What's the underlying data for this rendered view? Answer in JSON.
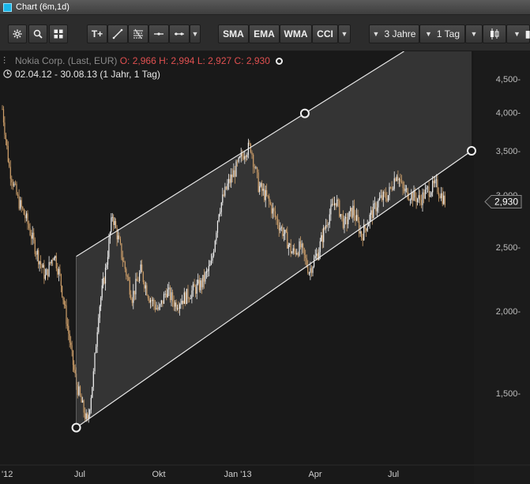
{
  "window": {
    "title": "Chart (6m,1d)"
  },
  "toolbar": {
    "indicators": [
      "SMA",
      "EMA",
      "WMA",
      "CCI"
    ],
    "period": "3 Jahre",
    "interval": "1 Tag",
    "text_tool_label": "T+"
  },
  "info": {
    "instrument": "Nokia Corp. (Last, EUR)",
    "open": "O: 2,966",
    "high": "H: 2,994",
    "low": "L: 2,927",
    "close": "C: 2,930",
    "range": "02.04.12 - 30.08.13 (1 Jahr, 1 Tag)"
  },
  "colors": {
    "up": "#f2f2f2",
    "down": "#cfa06a",
    "channel_fill": "#3a3a3a",
    "ohlc_text": "#e05050",
    "window_icon": "#19b6e8"
  },
  "chart_data": {
    "type": "line",
    "title": "Nokia Corp. (Last, EUR)",
    "scale": "log",
    "ylim": [
      1.3,
      4.9
    ],
    "x_tick_labels": [
      "'12",
      "Jul",
      "Okt",
      "Jan '13",
      "Apr",
      "Jul"
    ],
    "y_tick_labels": [
      "1,500-",
      "2,000-",
      "2,500-",
      "3,000-",
      "3,500-",
      "4,000-",
      "4,500-"
    ],
    "y_tick_values": [
      1.5,
      2.0,
      2.5,
      3.0,
      3.5,
      4.0,
      4.5
    ],
    "last_price_label": "2,930",
    "last_price": 2.93,
    "grid": false,
    "series": [
      {
        "type": "candlestick",
        "x": [
          "2012-04-02",
          "2012-04-10",
          "2012-04-20",
          "2012-04-30",
          "2012-05-10",
          "2012-05-22",
          "2012-06-01",
          "2012-06-08",
          "2012-06-13",
          "2012-06-18",
          "2012-06-22",
          "2012-06-27",
          "2012-07-03",
          "2012-07-10",
          "2012-07-17",
          "2012-07-23",
          "2012-07-31",
          "2012-08-08",
          "2012-08-20",
          "2012-08-31",
          "2012-09-10",
          "2012-09-20",
          "2012-10-01",
          "2012-10-10",
          "2012-10-20",
          "2012-11-01",
          "2012-11-10",
          "2012-11-20",
          "2012-12-01",
          "2012-12-10",
          "2012-12-20",
          "2013-01-02",
          "2013-01-09",
          "2013-01-16",
          "2013-01-25",
          "2013-02-05",
          "2013-02-15",
          "2013-02-25",
          "2013-03-05",
          "2013-03-15",
          "2013-03-25",
          "2013-04-04",
          "2013-04-15",
          "2013-04-25",
          "2013-05-05",
          "2013-05-15",
          "2013-05-25",
          "2013-06-05",
          "2013-06-15",
          "2013-06-25",
          "2013-07-05",
          "2013-07-12",
          "2013-07-22",
          "2013-08-01",
          "2013-08-10",
          "2013-08-20",
          "2013-08-30"
        ],
        "y": [
          4.05,
          3.3,
          2.95,
          2.75,
          2.5,
          2.25,
          2.45,
          2.25,
          2.05,
          1.85,
          1.7,
          1.55,
          1.45,
          1.35,
          1.6,
          2.0,
          2.3,
          2.8,
          2.4,
          2.1,
          2.3,
          2.1,
          2.0,
          2.15,
          2.05,
          2.1,
          2.15,
          2.2,
          2.35,
          2.85,
          3.1,
          3.35,
          3.5,
          3.55,
          3.1,
          2.95,
          2.75,
          2.6,
          2.45,
          2.5,
          2.3,
          2.45,
          2.75,
          2.95,
          2.7,
          2.85,
          2.6,
          2.8,
          2.95,
          3.0,
          3.25,
          3.05,
          3.0,
          2.95,
          3.05,
          3.1,
          2.93
        ]
      }
    ],
    "trend_channel": {
      "upper": {
        "from": {
          "x": "2012-06-27",
          "y": 2.42
        },
        "to": {
          "x": "2013-03-20",
          "y": 3.99
        }
      },
      "lower": {
        "from": {
          "x": "2012-06-27",
          "y": 1.33
        },
        "to": {
          "x": "2013-09-30",
          "y": 3.5
        }
      }
    }
  }
}
